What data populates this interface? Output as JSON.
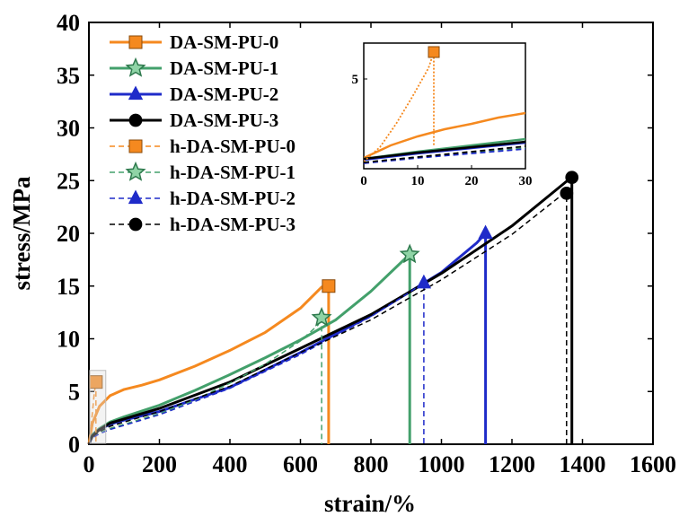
{
  "chart_data": {
    "type": "line",
    "title": "",
    "xlabel": "strain/%",
    "ylabel": "stress/MPa",
    "xlim": [
      0,
      1600
    ],
    "ylim": [
      0,
      40
    ],
    "xticks": [
      0,
      200,
      400,
      600,
      800,
      1000,
      1200,
      1400,
      1600
    ],
    "yticks": [
      0,
      5,
      10,
      15,
      20,
      25,
      30,
      35,
      40
    ],
    "legend_position": "top-left",
    "series": [
      {
        "name": "DA-SM-PU-0",
        "color": "#F5891F",
        "dash": "solid",
        "marker": "square",
        "x": [
          0,
          10,
          30,
          60,
          100,
          150,
          200,
          300,
          400,
          500,
          600,
          660,
          680,
          680
        ],
        "y": [
          0,
          2.0,
          3.6,
          4.6,
          5.2,
          5.6,
          6.1,
          7.4,
          8.9,
          10.6,
          12.9,
          14.9,
          15,
          0
        ],
        "marker_x": 680,
        "marker_y": 15
      },
      {
        "name": "DA-SM-PU-1",
        "color": "#43A06B",
        "dash": "solid",
        "marker": "star",
        "x": [
          0,
          10,
          30,
          60,
          100,
          200,
          300,
          400,
          500,
          600,
          700,
          800,
          900,
          910,
          910
        ],
        "y": [
          0,
          0.9,
          1.5,
          2.1,
          2.6,
          3.7,
          5.1,
          6.6,
          8.2,
          9.9,
          11.8,
          14.5,
          17.7,
          18,
          0
        ],
        "marker_x": 910,
        "marker_y": 18
      },
      {
        "name": "DA-SM-PU-2",
        "color": "#1F2BC9",
        "dash": "solid",
        "marker": "triangle",
        "x": [
          0,
          10,
          30,
          60,
          100,
          200,
          400,
          600,
          800,
          1000,
          1100,
          1125,
          1125
        ],
        "y": [
          0,
          0.8,
          1.4,
          1.9,
          2.3,
          3.1,
          5.4,
          8.7,
          12.2,
          16.3,
          19.1,
          20,
          0
        ],
        "marker_x": 1125,
        "marker_y": 20
      },
      {
        "name": "DA-SM-PU-3",
        "color": "#000000",
        "dash": "solid",
        "marker": "circle",
        "x": [
          0,
          10,
          30,
          60,
          100,
          200,
          400,
          600,
          800,
          1000,
          1200,
          1350,
          1370,
          1370
        ],
        "y": [
          0,
          0.8,
          1.4,
          2.0,
          2.4,
          3.4,
          5.9,
          9.1,
          12.3,
          16.2,
          20.7,
          24.8,
          25.3,
          0
        ],
        "marker_x": 1370,
        "marker_y": 25.3
      },
      {
        "name": "h-DA-SM-PU-0",
        "color": "#F5891F",
        "dash": "dashed",
        "marker": "square",
        "x": [
          0,
          5,
          10,
          15,
          20,
          20
        ],
        "y": [
          0,
          1.4,
          3.0,
          4.8,
          5.9,
          0
        ],
        "marker_x": 20,
        "marker_y": 5.9
      },
      {
        "name": "h-DA-SM-PU-1",
        "color": "#43A06B",
        "dash": "dashed",
        "marker": "star",
        "x": [
          0,
          10,
          30,
          60,
          100,
          200,
          300,
          400,
          500,
          600,
          650,
          660,
          660
        ],
        "y": [
          0,
          0.6,
          1.1,
          1.5,
          1.9,
          2.9,
          4.2,
          5.8,
          7.6,
          9.8,
          11.3,
          12,
          0
        ],
        "marker_x": 660,
        "marker_y": 12
      },
      {
        "name": "h-DA-SM-PU-2",
        "color": "#1F2BC9",
        "dash": "dashed",
        "marker": "triangle",
        "x": [
          0,
          10,
          30,
          60,
          100,
          200,
          400,
          600,
          800,
          900,
          940,
          950,
          950
        ],
        "y": [
          0,
          0.6,
          1.0,
          1.4,
          1.8,
          2.8,
          5.3,
          8.5,
          12.1,
          14.2,
          15.1,
          15.3,
          0
        ],
        "marker_x": 950,
        "marker_y": 15.3
      },
      {
        "name": "h-DA-SM-PU-3",
        "color": "#000000",
        "dash": "dashed",
        "marker": "circle",
        "x": [
          0,
          10,
          30,
          60,
          100,
          200,
          400,
          600,
          800,
          1000,
          1200,
          1340,
          1355,
          1355
        ],
        "y": [
          0,
          0.7,
          1.2,
          1.7,
          2.1,
          3.1,
          5.5,
          8.7,
          11.8,
          15.6,
          19.9,
          23.6,
          23.8,
          0
        ],
        "marker_x": 1355,
        "marker_y": 23.8
      }
    ],
    "inset": {
      "xlim": [
        0,
        30
      ],
      "ylim": [
        0,
        7
      ],
      "xticks": [
        0,
        10,
        20,
        30
      ],
      "yticks": [
        5
      ],
      "series": [
        {
          "ref": "DA-SM-PU-0",
          "x": [
            0,
            5,
            10,
            15,
            20,
            25,
            30
          ],
          "y": [
            0.6,
            1.3,
            1.8,
            2.2,
            2.5,
            2.85,
            3.1
          ]
        },
        {
          "ref": "DA-SM-PU-1",
          "x": [
            0,
            10,
            20,
            30
          ],
          "y": [
            0.55,
            0.95,
            1.3,
            1.65
          ]
        },
        {
          "ref": "DA-SM-PU-2",
          "x": [
            0,
            10,
            20,
            30
          ],
          "y": [
            0.5,
            0.85,
            1.15,
            1.45
          ]
        },
        {
          "ref": "DA-SM-PU-3",
          "x": [
            0,
            10,
            20,
            30
          ],
          "y": [
            0.55,
            0.9,
            1.2,
            1.5
          ]
        },
        {
          "ref": "h-DA-SM-PU-0",
          "x": [
            0,
            3,
            6,
            9,
            12,
            13,
            13
          ],
          "y": [
            0.4,
            1.2,
            2.5,
            4.0,
            5.6,
            6.5,
            1.3
          ],
          "marker_x": 13,
          "marker_y": 6.5
        },
        {
          "ref": "h-DA-SM-PU-1",
          "x": [
            0,
            10,
            20,
            30
          ],
          "y": [
            0.35,
            0.65,
            0.9,
            1.15
          ]
        },
        {
          "ref": "h-DA-SM-PU-2",
          "x": [
            0,
            10,
            20,
            30
          ],
          "y": [
            0.3,
            0.6,
            0.85,
            1.1
          ]
        },
        {
          "ref": "h-DA-SM-PU-3",
          "x": [
            0,
            10,
            20,
            30
          ],
          "y": [
            0.35,
            0.65,
            0.95,
            1.25
          ]
        }
      ]
    }
  }
}
